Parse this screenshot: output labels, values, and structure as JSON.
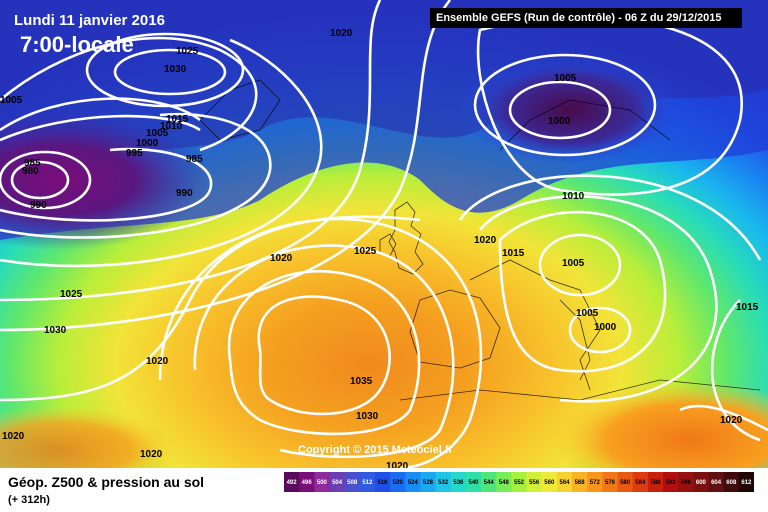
{
  "header": {
    "run_label": "Ensemble GEFS  (Run de contrôle)  -  06 Z du 29/12/2015",
    "date": "Lundi 11 janvier 2016",
    "time": "7:00-locale"
  },
  "footer": {
    "title": "Géop. Z500 & pression au sol",
    "subtitle": "(+ 312h)",
    "copyright": "Copyright © 2015 Meteociel.fr"
  },
  "legend": {
    "values": [
      "492",
      "496",
      "500",
      "504",
      "508",
      "512",
      "516",
      "520",
      "524",
      "528",
      "532",
      "536",
      "540",
      "544",
      "548",
      "552",
      "556",
      "560",
      "564",
      "568",
      "572",
      "576",
      "580",
      "584",
      "588",
      "592",
      "596",
      "600",
      "604",
      "608",
      "612"
    ],
    "colors": [
      "#5a0a5a",
      "#7a0d7a",
      "#8e2a9a",
      "#6b3fb3",
      "#4a4fcc",
      "#2f5be0",
      "#1f4fe8",
      "#1a6cf0",
      "#1a8cf2",
      "#1aa8f0",
      "#20c4e6",
      "#24d8cc",
      "#2fe0a6",
      "#4ee67c",
      "#7aec58",
      "#a6f040",
      "#d2f038",
      "#eeea38",
      "#f8d030",
      "#f8b424",
      "#f8961c",
      "#f07818",
      "#e85a14",
      "#dc3c10",
      "#c8200c",
      "#b01010",
      "#961010",
      "#7a1010",
      "#601010",
      "#400a0a",
      "#200505"
    ]
  },
  "isobars": [
    {
      "label": "1020"
    },
    {
      "label": "1025"
    },
    {
      "label": "1030"
    },
    {
      "label": "1015"
    },
    {
      "label": "1010"
    },
    {
      "label": "1005"
    },
    {
      "label": "1000"
    },
    {
      "label": "995"
    },
    {
      "label": "985"
    },
    {
      "label": "980"
    },
    {
      "label": "990"
    },
    {
      "label": "1005"
    },
    {
      "label": "1000"
    },
    {
      "label": "1010"
    },
    {
      "label": "1020"
    },
    {
      "label": "1015"
    },
    {
      "label": "1005"
    },
    {
      "label": "1005"
    },
    {
      "label": "1000"
    },
    {
      "label": "1015"
    },
    {
      "label": "1025"
    },
    {
      "label": "1020"
    },
    {
      "label": "1025"
    },
    {
      "label": "1030"
    },
    {
      "label": "1020"
    },
    {
      "label": "1035"
    },
    {
      "label": "1030"
    },
    {
      "label": "1020"
    },
    {
      "label": "1020"
    },
    {
      "label": "1020"
    },
    {
      "label": "1020"
    },
    {
      "label": "985"
    },
    {
      "label": "1005"
    }
  ],
  "colors": {
    "background": "#ffffff",
    "isobar": "#ffffff"
  }
}
